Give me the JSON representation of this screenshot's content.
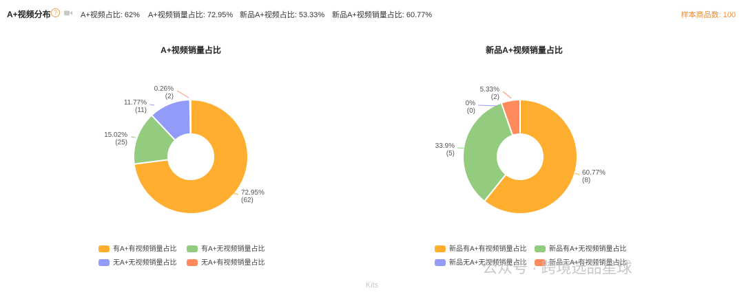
{
  "header": {
    "title": "A+视频分布",
    "stats": [
      {
        "label": "A+视频占比: 62%"
      },
      {
        "label": "A+视频销量占比: 72.95%"
      },
      {
        "label": "新品A+视频占比: 53.33%"
      },
      {
        "label": "新品A+视频销量占比: 60.77%"
      }
    ],
    "sample_count": "样本商品数: 100"
  },
  "chart_data": [
    {
      "type": "pie",
      "donut": true,
      "title": "A+视频销量占比",
      "slices": [
        {
          "name": "有A+有视频销量占比",
          "percent": 72.95,
          "count": 62,
          "pct_label": "72.95%",
          "count_label": "(62)",
          "color": "#ffae2f"
        },
        {
          "name": "有A+无视频销量占比",
          "percent": 15.02,
          "count": 25,
          "pct_label": "15.02%",
          "count_label": "(25)",
          "color": "#93cb7f"
        },
        {
          "name": "无A+无视频销量占比",
          "percent": 11.77,
          "count": 11,
          "pct_label": "11.77%",
          "count_label": "(11)",
          "color": "#939bf8"
        },
        {
          "name": "无A+有视频销量占比",
          "percent": 0.26,
          "count": 2,
          "pct_label": "0.26%",
          "count_label": "(2)",
          "color": "#ff8a5b"
        }
      ],
      "legend_position": "bottom"
    },
    {
      "type": "pie",
      "donut": true,
      "title": "新品A+视频销量占比",
      "slices": [
        {
          "name": "新品有A+有视频销量占比",
          "percent": 60.77,
          "count": 8,
          "pct_label": "60.77%",
          "count_label": "(8)",
          "color": "#ffae2f"
        },
        {
          "name": "新品有A+无视频销量占比",
          "percent": 33.9,
          "count": 5,
          "pct_label": "33.9%",
          "count_label": "(5)",
          "color": "#93cb7f"
        },
        {
          "name": "新品无A+无视频销量占比",
          "percent": 0,
          "count": 0,
          "pct_label": "0%",
          "count_label": "(0)",
          "color": "#939bf8"
        },
        {
          "name": "新品无A+有视频销量占比",
          "percent": 5.33,
          "count": 2,
          "pct_label": "5.33%",
          "count_label": "(2)",
          "color": "#ff8a5b"
        }
      ],
      "legend_position": "bottom"
    }
  ],
  "footer": "Kits",
  "watermark": "公众号 · 跨境选品星球"
}
